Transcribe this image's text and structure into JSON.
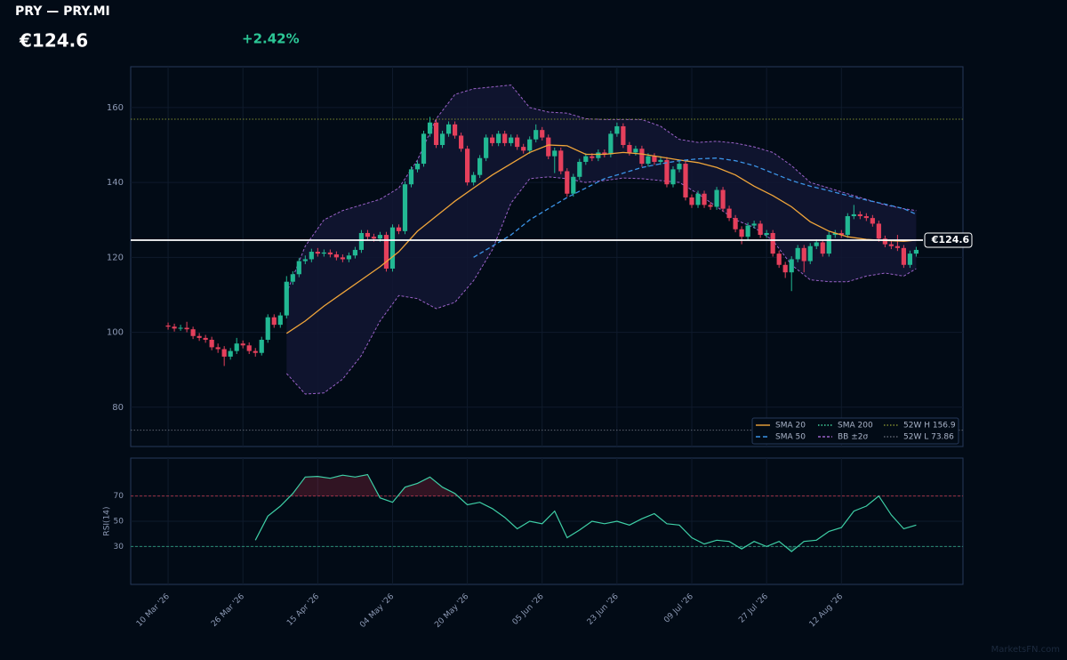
{
  "header": {
    "title": "PRY — PRY.MI",
    "price": "€124.6",
    "change": "+2.42%"
  },
  "watermark": "MarketsFN.com",
  "chart_data": [
    {
      "type": "candlestick",
      "xlim": [
        -6,
        127.5
      ],
      "xticks": [
        {
          "value": 0,
          "label": "10 Mar '26"
        },
        {
          "value": 12,
          "label": "26 Mar '26"
        },
        {
          "value": 24,
          "label": "15 Apr '26"
        },
        {
          "value": 36,
          "label": "04 May '26"
        },
        {
          "value": 48,
          "label": "20 May '26"
        },
        {
          "value": 60,
          "label": "05 Jun '26"
        },
        {
          "value": 72,
          "label": "23 Jun '26"
        },
        {
          "value": 84,
          "label": "09 Jul '26"
        },
        {
          "value": 96,
          "label": "27 Jul '26"
        },
        {
          "value": 108,
          "label": "12 Aug '26"
        }
      ],
      "ylim": [
        69.5,
        170.9
      ],
      "yticks": [
        80,
        100,
        120,
        140,
        160
      ],
      "grid": true,
      "up_color": "#22b893",
      "down_color": "#e5405c",
      "open": [
        101.8,
        101.5,
        101,
        101.2,
        100.8,
        99,
        98.5,
        98,
        96,
        95.5,
        93.5,
        95,
        97,
        96.5,
        95,
        94.5,
        98,
        104,
        102,
        104.5,
        113.5,
        115.5,
        119,
        119.5,
        121.5,
        121,
        121.3,
        120.8,
        120,
        119.5,
        120.5,
        122,
        126.5,
        125.5,
        125,
        126,
        117,
        128,
        127,
        139.5,
        143.5,
        145,
        153,
        156,
        150,
        153,
        155.5,
        152.5,
        149,
        140,
        142,
        146.5,
        152,
        150.5,
        153,
        150.5,
        152,
        149.5,
        148.5,
        151.5,
        154,
        152,
        147,
        148.5,
        143,
        137,
        141.5,
        145.5,
        147,
        146.5,
        148,
        147.5,
        153,
        155,
        150,
        148,
        149,
        145,
        147,
        145.5,
        146,
        139.5,
        143.5,
        145,
        136,
        134,
        137,
        134,
        133.5,
        138,
        133,
        130.5,
        127.5,
        125.5,
        128.5,
        129,
        126,
        126.5,
        121,
        118,
        116,
        119.5,
        122.5,
        119,
        123,
        124,
        121,
        126,
        126.5,
        126,
        131,
        131.5,
        131,
        130.5,
        129,
        125,
        123.5,
        123,
        122.5,
        118,
        121
      ],
      "high": [
        102.6,
        102.3,
        102,
        102.8,
        101.5,
        99.8,
        99.3,
        98.8,
        97,
        96.3,
        95.8,
        98.5,
        97.8,
        97.3,
        95.8,
        98.8,
        104.8,
        104.8,
        105.3,
        115,
        116.3,
        119.8,
        120.5,
        122.3,
        122.5,
        122.1,
        122.1,
        121.6,
        120.8,
        121.3,
        122.8,
        127.3,
        127.3,
        126.3,
        126.8,
        126.8,
        128.8,
        128.8,
        140.3,
        144.3,
        145.8,
        153.8,
        157.5,
        156.8,
        153.8,
        156.3,
        156.3,
        153.3,
        149.8,
        142.8,
        147.3,
        152.8,
        152.8,
        153.8,
        153.8,
        152.8,
        152.8,
        150.3,
        152.3,
        155.5,
        154.8,
        152.8,
        149.3,
        149.3,
        143.8,
        142.3,
        146.3,
        147.8,
        147.8,
        148.8,
        148.8,
        153.8,
        156,
        155.8,
        150.8,
        149.8,
        149.8,
        147.8,
        147.8,
        147,
        146.8,
        144.3,
        145.8,
        145.8,
        136.8,
        137.8,
        137.8,
        134.8,
        138.8,
        138.8,
        133.8,
        131.3,
        128.3,
        129.3,
        129.8,
        129.8,
        127.3,
        127.3,
        121.8,
        118.8,
        120.3,
        123.3,
        123.3,
        123.8,
        124.8,
        124.8,
        126.8,
        127.3,
        127.3,
        131.8,
        134,
        132.3,
        131.8,
        131.3,
        129.8,
        125.8,
        124.3,
        126,
        123.3,
        121.8,
        122.8
      ],
      "low": [
        100.7,
        100.2,
        100.4,
        100,
        98.2,
        97.7,
        97.2,
        95.2,
        94.5,
        91,
        92.7,
        94.2,
        95.7,
        94.2,
        93.5,
        93.8,
        97.2,
        101.2,
        101.2,
        103.7,
        112.7,
        114.7,
        118.2,
        118.7,
        120.2,
        120.2,
        120,
        119.2,
        118.7,
        118.7,
        119.7,
        121.2,
        124.7,
        124.2,
        124.2,
        116.2,
        116.2,
        126.2,
        126.2,
        138.7,
        142.7,
        144.2,
        152.2,
        149.2,
        149.2,
        152.2,
        151.7,
        148.2,
        139.2,
        139.2,
        141.2,
        145.7,
        149.7,
        149.7,
        149.7,
        149.7,
        148.7,
        147.7,
        147.7,
        150.7,
        151.2,
        146.2,
        142.5,
        142.2,
        136.2,
        136.2,
        140.7,
        144.7,
        145.7,
        145.7,
        146.7,
        146.7,
        152.2,
        149.2,
        147.2,
        147.2,
        144.2,
        144.2,
        144.7,
        144.7,
        138.7,
        138.7,
        142.7,
        135.2,
        133.2,
        133.2,
        133.2,
        132.7,
        132.7,
        132.2,
        129.7,
        126.7,
        123.5,
        124.7,
        127.7,
        125.2,
        125.2,
        120.2,
        117.2,
        114.5,
        111,
        118.7,
        116,
        118.2,
        122.2,
        120.2,
        120.2,
        125.2,
        125.2,
        125.2,
        130.2,
        130.2,
        129.7,
        128.2,
        124.2,
        122.7,
        122.2,
        121.7,
        117.2,
        117.2,
        120.2
      ],
      "close": [
        101.5,
        101,
        101.2,
        100.8,
        99,
        98.5,
        98,
        96,
        95.5,
        93.5,
        95,
        97,
        96.5,
        95,
        94.5,
        98,
        104,
        102,
        104.5,
        113.5,
        115.5,
        119,
        119.5,
        121.5,
        121,
        121.3,
        120.8,
        120,
        119.5,
        120.5,
        122,
        126.5,
        125.5,
        125,
        126,
        117,
        128,
        127,
        139.5,
        143.5,
        145,
        153,
        156,
        150,
        153,
        155.5,
        152.5,
        149,
        140,
        142,
        146.5,
        152,
        150.5,
        153,
        150.5,
        152,
        149.5,
        148.5,
        151.5,
        154,
        152,
        147,
        148.5,
        143,
        137,
        141.5,
        145.5,
        147,
        146.5,
        148,
        147.5,
        153,
        155,
        150,
        148,
        149,
        145,
        147,
        145.5,
        146,
        139.5,
        143.5,
        145,
        136,
        134,
        137,
        134,
        133.5,
        138,
        133,
        130.5,
        127.5,
        125.5,
        128.5,
        129,
        126,
        126.5,
        121,
        118,
        116,
        119.5,
        122.5,
        119,
        123,
        124,
        121,
        126,
        126.5,
        126,
        131,
        131.5,
        131,
        130.5,
        129,
        125,
        123.5,
        123,
        122.5,
        118,
        121,
        122
      ],
      "overlays": [
        {
          "name": "SMA 20",
          "kind": "line",
          "color": "#f0a53a",
          "dash": "",
          "x": [
            19,
            22,
            25,
            28,
            31,
            34,
            37,
            40,
            43,
            46,
            49,
            52,
            55,
            58,
            61,
            64,
            67,
            70,
            73,
            76,
            79,
            82,
            85,
            88,
            91,
            94,
            97,
            100,
            103,
            106,
            109,
            112,
            115,
            118,
            120
          ],
          "values": [
            99.7,
            103,
            107,
            110.5,
            114,
            117.5,
            121.5,
            127,
            131,
            135,
            138.5,
            142,
            145,
            148,
            150,
            149.8,
            147.5,
            147.5,
            148,
            147.6,
            146.8,
            146,
            145.3,
            144,
            142,
            139,
            136.5,
            133.5,
            129.5,
            127,
            125.5,
            124.8,
            124.5,
            124.3,
            124.6
          ]
        },
        {
          "name": "SMA 50",
          "kind": "line",
          "color": "#3b93e6",
          "dash": "5 3",
          "x": [
            49,
            52,
            55,
            58,
            61,
            64,
            67,
            70,
            73,
            76,
            79,
            82,
            85,
            88,
            91,
            94,
            97,
            100,
            103,
            106,
            109,
            112,
            115,
            118,
            120
          ],
          "values": [
            120,
            123,
            126,
            130,
            133,
            136,
            138.5,
            141,
            142.5,
            144,
            145,
            145.8,
            146.3,
            146.5,
            145.8,
            144.5,
            142.5,
            140.5,
            139,
            137.8,
            136.5,
            135.3,
            134.2,
            133,
            131.5
          ]
        },
        {
          "name": "SMA 200",
          "kind": "line",
          "color": "#3fcf9a",
          "dash": "1.5 2"
        },
        {
          "name": "BB ±2σ",
          "kind": "band",
          "color": "#9a62c8",
          "dash": "3 2",
          "fill": "#121633",
          "x": [
            19,
            22,
            25,
            28,
            31,
            34,
            37,
            40,
            43,
            46,
            49,
            52,
            55,
            58,
            61,
            64,
            67,
            70,
            73,
            76,
            79,
            82,
            85,
            88,
            91,
            94,
            97,
            100,
            103,
            106,
            109,
            112,
            115,
            118,
            120
          ],
          "upper": [
            110.5,
            123,
            130,
            132.5,
            134,
            135.5,
            138.5,
            146,
            157,
            163.5,
            165,
            165.5,
            166,
            160,
            158.8,
            158.5,
            157,
            156.8,
            156.8,
            156.8,
            155,
            151.5,
            150.7,
            151,
            150.5,
            149.5,
            148,
            144.5,
            140,
            138.5,
            137,
            135.5,
            134,
            133,
            132.5
          ],
          "lower": [
            89,
            83.5,
            83.8,
            87.5,
            93.8,
            103,
            109.8,
            109,
            106.3,
            108,
            113.8,
            122,
            134.5,
            141,
            141.5,
            141,
            140,
            140.5,
            141.2,
            141,
            140.5,
            140,
            137,
            133.5,
            130,
            128,
            124.5,
            118,
            114,
            113.5,
            113.5,
            115,
            115.8,
            115,
            117
          ]
        },
        {
          "name": "52W H 156.9",
          "kind": "level",
          "color": "#7c8a2e",
          "dash": "1.5 2",
          "value": 156.9
        },
        {
          "name": "52W L 73.86",
          "kind": "level",
          "color": "#5d6470",
          "dash": "1.5 2",
          "value": 73.86
        }
      ],
      "last_price": {
        "value": 124.6,
        "label": "€124.6"
      }
    },
    {
      "type": "line",
      "ylabel": "RSI(14)",
      "xlim": [
        -6,
        127.5
      ],
      "ylim": [
        0,
        100
      ],
      "yticks": [
        30,
        50,
        70
      ],
      "overbought": 70,
      "oversold": 30,
      "color": "#3ecfa6",
      "x": [
        14,
        16,
        18,
        20,
        22,
        24,
        26,
        28,
        30,
        32,
        34,
        36,
        38,
        40,
        42,
        44,
        46,
        48,
        50,
        52,
        54,
        56,
        58,
        60,
        62,
        64,
        66,
        68,
        70,
        72,
        74,
        76,
        78,
        80,
        82,
        84,
        86,
        88,
        90,
        92,
        94,
        96,
        98,
        100,
        102,
        104,
        106,
        108,
        110,
        112,
        114,
        116,
        118,
        120
      ],
      "values": [
        35,
        54,
        62,
        72,
        85,
        85.5,
        84,
        86.5,
        85,
        87,
        68.5,
        65,
        77,
        80,
        85,
        77,
        72,
        63,
        65,
        60,
        53,
        44,
        50,
        48,
        58,
        37,
        43,
        50,
        48,
        50,
        47,
        52,
        56,
        48,
        47,
        37,
        32,
        35,
        34,
        28,
        34,
        30,
        34,
        26,
        34,
        35,
        42,
        45,
        58,
        62,
        70,
        55,
        44,
        47
      ]
    }
  ]
}
